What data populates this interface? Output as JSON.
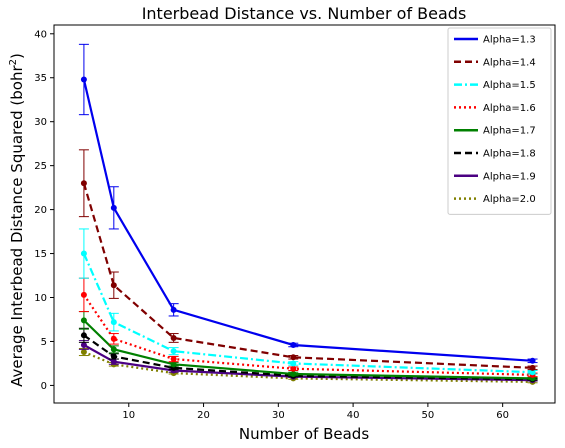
{
  "chart_data": {
    "type": "line",
    "title": "Interbead Distance vs. Number of Beads",
    "xlabel": "Number of Beads",
    "ylabel_main": "Average Interbead Distance Squared (bohr",
    "ylabel_sup": "2",
    "ylabel_end": ")",
    "x": [
      4,
      8,
      16,
      32,
      64
    ],
    "xlim": [
      0,
      67
    ],
    "ylim": [
      -2,
      41
    ],
    "xticks": [
      10,
      20,
      30,
      40,
      50,
      60
    ],
    "yticks": [
      0,
      5,
      10,
      15,
      20,
      25,
      30,
      35,
      40
    ],
    "grid": false,
    "legend_position": "top-right",
    "series": [
      {
        "name": "Alpha=1.3",
        "color": "#0000ee",
        "dash": "solid",
        "values": [
          34.8,
          20.2,
          8.6,
          4.6,
          2.8
        ],
        "errors": [
          4.0,
          2.4,
          0.7,
          0.2,
          0.2
        ]
      },
      {
        "name": "Alpha=1.4",
        "color": "#800000",
        "dash": "dashed",
        "values": [
          23.0,
          11.4,
          5.4,
          3.2,
          2.0
        ],
        "errors": [
          3.8,
          1.5,
          0.5,
          0.2,
          0.2
        ]
      },
      {
        "name": "Alpha=1.5",
        "color": "#00ffff",
        "dash": "dashdot",
        "values": [
          15.0,
          7.2,
          3.9,
          2.5,
          1.5
        ],
        "errors": [
          2.8,
          1.0,
          0.4,
          0.2,
          0.2
        ]
      },
      {
        "name": "Alpha=1.6",
        "color": "#ff0000",
        "dash": "dotted",
        "values": [
          10.3,
          5.3,
          3.0,
          1.9,
          1.2
        ],
        "errors": [
          1.9,
          0.6,
          0.3,
          0.2,
          0.2
        ]
      },
      {
        "name": "Alpha=1.7",
        "color": "#008000",
        "dash": "solid",
        "values": [
          7.4,
          4.1,
          2.4,
          1.3,
          0.8
        ],
        "errors": [
          1.0,
          0.4,
          0.2,
          0.2,
          0.1
        ]
      },
      {
        "name": "Alpha=1.8",
        "color": "#000000",
        "dash": "dashed",
        "values": [
          5.7,
          3.3,
          2.0,
          1.1,
          0.7
        ],
        "errors": [
          0.8,
          0.3,
          0.2,
          0.1,
          0.1
        ]
      },
      {
        "name": "Alpha=1.9",
        "color": "#4b0082",
        "dash": "solid",
        "values": [
          4.6,
          2.7,
          1.7,
          1.0,
          0.6
        ],
        "errors": [
          0.5,
          0.3,
          0.2,
          0.1,
          0.1
        ]
      },
      {
        "name": "Alpha=2.0",
        "color": "#808000",
        "dash": "dotted",
        "values": [
          3.8,
          2.4,
          1.4,
          0.8,
          0.4
        ],
        "errors": [
          0.4,
          0.2,
          0.1,
          0.1,
          0.1
        ]
      }
    ]
  }
}
